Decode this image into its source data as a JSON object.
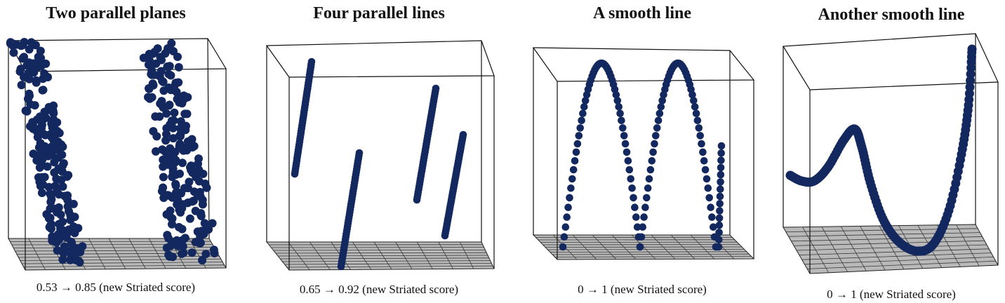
{
  "chart_data": [
    {
      "type": "scatter",
      "variant": "3d-scatter",
      "title": "Two parallel planes",
      "caption": "0.53 → 0.85 (new Striated score)",
      "pattern": "two parallel planes",
      "point_color": "#13285e",
      "grid": "floor"
    },
    {
      "type": "scatter",
      "variant": "3d-scatter",
      "title": "Four parallel lines",
      "caption": "0.65 → 0.92 (new Striated score)",
      "pattern": "four parallel lines",
      "point_color": "#13285e",
      "grid": "floor"
    },
    {
      "type": "scatter",
      "variant": "3d-scatter",
      "title": "A smooth line",
      "caption": "0 → 1 (new Striated score)",
      "pattern": "smooth line (two arches)",
      "point_color": "#13285e",
      "grid": "floor"
    },
    {
      "type": "scatter",
      "variant": "3d-scatter",
      "title": "Another smooth line",
      "caption": "0 → 1 (new Striated score)",
      "pattern": "smooth line (wave)",
      "point_color": "#13285e",
      "grid": "floor"
    }
  ]
}
